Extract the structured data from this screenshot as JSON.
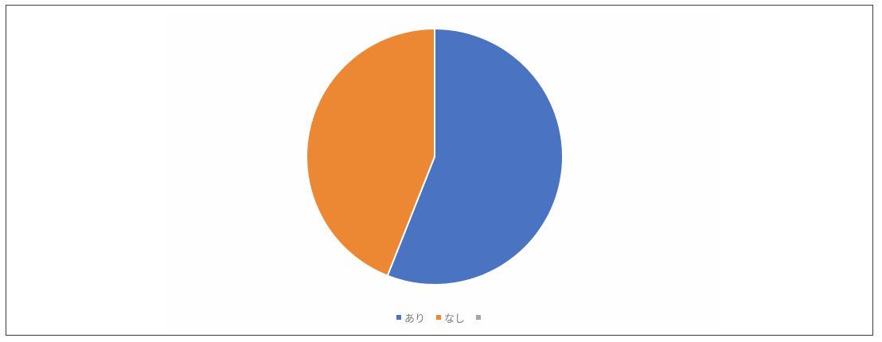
{
  "chart_data": {
    "type": "pie",
    "title": "",
    "series": [
      {
        "name": "あり",
        "value": 56.0,
        "color": "#4A73C2"
      },
      {
        "name": "なし",
        "value": 44.0,
        "color": "#EC8834"
      },
      {
        "name": "",
        "value": 0,
        "color": "#A5A5A5"
      }
    ],
    "legend_position": "bottom"
  }
}
